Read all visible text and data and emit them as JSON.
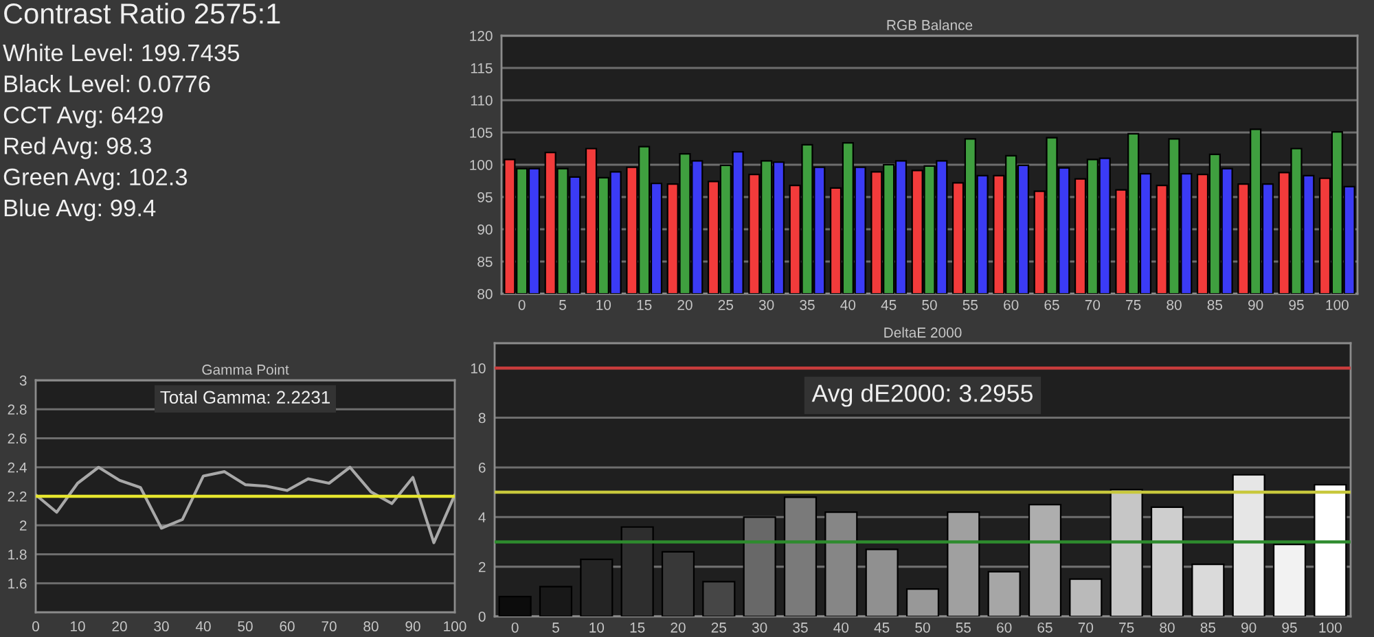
{
  "chart_data": [
    {
      "type": "other",
      "title": "Contrast Ratio 2575:1",
      "annotations": [
        "White Level: 199.7435",
        "Black Level: 0.0776",
        "CCT Avg: 6429",
        "Red Avg: 98.3",
        "Green Avg: 102.3",
        "Blue Avg: 99.4"
      ]
    },
    {
      "type": "bar",
      "title": "RGB Balance",
      "categories": [
        "0",
        "5",
        "10",
        "15",
        "20",
        "25",
        "30",
        "35",
        "40",
        "45",
        "50",
        "55",
        "60",
        "65",
        "70",
        "75",
        "80",
        "85",
        "90",
        "95",
        "100"
      ],
      "series": [
        {
          "color": "#f23b3b",
          "values": [
            100.8,
            101.9,
            102.5,
            99.6,
            97.0,
            97.4,
            98.5,
            96.8,
            96.4,
            98.9,
            99.1,
            97.2,
            98.3,
            95.9,
            97.8,
            96.1,
            96.8,
            98.5,
            97.0,
            98.8,
            97.9
          ]
        },
        {
          "color": "#3f9f3f",
          "values": [
            99.4,
            99.4,
            98.0,
            102.8,
            101.7,
            99.9,
            100.6,
            103.1,
            103.4,
            100.0,
            99.8,
            104.0,
            101.4,
            104.2,
            100.8,
            104.8,
            104.0,
            101.6,
            105.5,
            102.5,
            105.1
          ]
        },
        {
          "color": "#3b3bf5",
          "values": [
            99.4,
            98.1,
            98.9,
            97.1,
            100.6,
            102.0,
            100.4,
            99.6,
            99.6,
            100.6,
            100.6,
            98.3,
            99.9,
            99.5,
            101.0,
            98.6,
            98.6,
            99.4,
            97.0,
            98.3,
            96.6
          ]
        }
      ],
      "ylim": [
        80,
        120
      ],
      "yticks": [
        80,
        85,
        90,
        95,
        100,
        105,
        110,
        115,
        120
      ],
      "grid": "y"
    },
    {
      "type": "line",
      "title": "Gamma Point",
      "x": [
        0,
        5,
        10,
        15,
        20,
        25,
        30,
        35,
        40,
        45,
        50,
        55,
        60,
        65,
        70,
        75,
        80,
        85,
        90,
        95,
        100
      ],
      "values": [
        2.21,
        2.09,
        2.29,
        2.4,
        2.31,
        2.26,
        1.98,
        2.04,
        2.34,
        2.37,
        2.28,
        2.27,
        2.24,
        2.32,
        2.29,
        2.4,
        2.23,
        2.15,
        2.33,
        1.88,
        2.21
      ],
      "color": "#a8a8a8",
      "xlim": [
        0,
        100
      ],
      "xticks": [
        0,
        10,
        20,
        30,
        40,
        50,
        60,
        70,
        80,
        90,
        100
      ],
      "ylim": [
        1.4,
        3
      ],
      "yticks": [
        1.6,
        1.8,
        2,
        2.2,
        2.4,
        2.6,
        2.8,
        3
      ],
      "grid": "y",
      "ref_lines": [
        {
          "axis": "y",
          "value": 2.2,
          "color": "#e6e62e"
        }
      ],
      "annotations": [
        "Total Gamma: 2.2231"
      ]
    },
    {
      "type": "bar",
      "title": "DeltaE 2000",
      "categories": [
        "0",
        "5",
        "10",
        "15",
        "20",
        "25",
        "30",
        "35",
        "40",
        "45",
        "50",
        "55",
        "60",
        "65",
        "70",
        "75",
        "80",
        "85",
        "90",
        "95",
        "100"
      ],
      "values": [
        0.8,
        1.2,
        2.3,
        3.6,
        2.6,
        1.4,
        4.0,
        4.8,
        4.2,
        2.7,
        1.1,
        4.2,
        1.8,
        4.5,
        1.5,
        5.1,
        4.4,
        2.1,
        5.7,
        2.9,
        5.3
      ],
      "colors": [
        "#0c0c0c",
        "#181818",
        "#242424",
        "#2e2e2e",
        "#383838",
        "#464646",
        "#686868",
        "#7a7a7a",
        "#868686",
        "#909090",
        "#989898",
        "#a0a0a0",
        "#a6a6a6",
        "#aeaeae",
        "#bababa",
        "#c6c6c6",
        "#cecece",
        "#dadada",
        "#e6e6e6",
        "#f2f2f2",
        "#ffffff"
      ],
      "ylim": [
        0,
        11
      ],
      "yticks": [
        0,
        2,
        4,
        6,
        8,
        10
      ],
      "grid": "y",
      "ref_lines": [
        {
          "axis": "y",
          "value": 10,
          "color": "#c83c3c"
        },
        {
          "axis": "y",
          "value": 5,
          "color": "#c8c83c"
        },
        {
          "axis": "y",
          "value": 3,
          "color": "#2e8b2e"
        }
      ],
      "annotations": [
        "Avg dE2000: 3.2955"
      ]
    }
  ]
}
